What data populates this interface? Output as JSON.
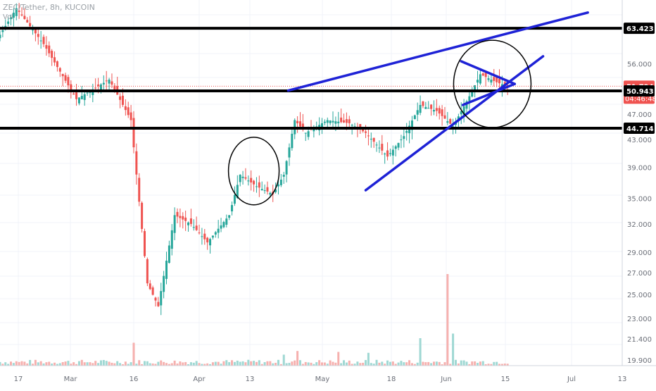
{
  "header": {
    "symbol_line": "ZEC/Tether, 8h, KUCOIN",
    "volume_label": "Vol"
  },
  "colors": {
    "up": "#26a69a",
    "down": "#ef5350",
    "trendline": "#1e22d6",
    "level_line": "#000000",
    "price_line": "#ef5350",
    "grid": "#f0f3fa",
    "axis_text": "#6b6f78"
  },
  "chart_data": {
    "type": "candlestick",
    "x_axis": {
      "ticks": [
        "17",
        "Mar",
        "16",
        "Apr",
        "13",
        "May",
        "18",
        "Jun",
        "15",
        "Jul",
        "13"
      ]
    },
    "y_axis": {
      "scale": "log",
      "range": [
        19.5,
        70
      ],
      "ticks": [
        "56.000",
        "47.000",
        "43.000",
        "39.000",
        "35.000",
        "32.000",
        "29.000",
        "27.000",
        "25.000",
        "23.000",
        "21.400",
        "19.900"
      ]
    },
    "price_labels": [
      {
        "value": 63.423,
        "text": "63.423",
        "kind": "level"
      },
      {
        "value": 51.794,
        "text": "51.794",
        "kind": "last"
      },
      {
        "value": 50.943,
        "text": "50.943",
        "kind": "level"
      },
      {
        "value": 44.714,
        "text": "44.714",
        "kind": "level"
      }
    ],
    "countdown": "04:46:48",
    "horizontal_levels": [
      63.423,
      50.943,
      44.714
    ],
    "last_price": 51.794,
    "anchors": [
      {
        "x": 0.0,
        "y": 62.0
      },
      {
        "x": 3.0,
        "y": 68.0
      },
      {
        "x": 8.0,
        "y": 60.0
      },
      {
        "x": 14.0,
        "y": 49.5
      },
      {
        "x": 20.0,
        "y": 53.0
      },
      {
        "x": 24.0,
        "y": 46.0
      },
      {
        "x": 27.0,
        "y": 26.0
      },
      {
        "x": 29.0,
        "y": 24.0
      },
      {
        "x": 32.0,
        "y": 33.0
      },
      {
        "x": 35.0,
        "y": 32.0
      },
      {
        "x": 38.0,
        "y": 30.0
      },
      {
        "x": 42.0,
        "y": 33.0
      },
      {
        "x": 44.0,
        "y": 38.0
      },
      {
        "x": 47.0,
        "y": 36.5
      },
      {
        "x": 50.0,
        "y": 35.5
      },
      {
        "x": 52.0,
        "y": 38.0
      },
      {
        "x": 54.0,
        "y": 46.0
      },
      {
        "x": 56.0,
        "y": 44.0
      },
      {
        "x": 60.0,
        "y": 46.0
      },
      {
        "x": 64.0,
        "y": 45.5
      },
      {
        "x": 67.0,
        "y": 44.0
      },
      {
        "x": 71.0,
        "y": 40.5
      },
      {
        "x": 74.0,
        "y": 43.5
      },
      {
        "x": 77.0,
        "y": 48.5
      },
      {
        "x": 80.0,
        "y": 47.5
      },
      {
        "x": 83.0,
        "y": 45.0
      },
      {
        "x": 86.0,
        "y": 50.0
      },
      {
        "x": 88.0,
        "y": 54.0
      },
      {
        "x": 91.0,
        "y": 52.5
      },
      {
        "x": 93.0,
        "y": 51.8
      }
    ],
    "volume_spikes": [
      {
        "x": 82.0,
        "v": 1.0
      },
      {
        "x": 83.0,
        "v": 0.35
      },
      {
        "x": 77.0,
        "v": 0.3
      },
      {
        "x": 24.5,
        "v": 0.25
      },
      {
        "x": 54.5,
        "v": 0.16
      },
      {
        "x": 62.0,
        "v": 0.15
      },
      {
        "x": 67.5,
        "v": 0.14
      },
      {
        "x": 52.0,
        "v": 0.12
      }
    ],
    "trendlines": [
      {
        "from": {
          "x": 52.8,
          "y": 51.0
        },
        "to": {
          "x": 107.7,
          "y": 67.0
        }
      },
      {
        "from": {
          "x": 67.0,
          "y": 36.0
        },
        "to": {
          "x": 99.5,
          "y": 57.5
        }
      },
      {
        "from": {
          "x": 84.5,
          "y": 56.5
        },
        "to": {
          "x": 94.3,
          "y": 52.2
        }
      },
      {
        "from": {
          "x": 84.8,
          "y": 48.5
        },
        "to": {
          "x": 94.3,
          "y": 52.2
        }
      }
    ],
    "circles": [
      {
        "x": 46.5,
        "y": 38.0,
        "rx": 3.1,
        "ry_fraction": 0.0
      },
      {
        "x": 90.2,
        "y": 52.0,
        "rx": 7.0,
        "ry_fraction": 0.0
      }
    ]
  }
}
